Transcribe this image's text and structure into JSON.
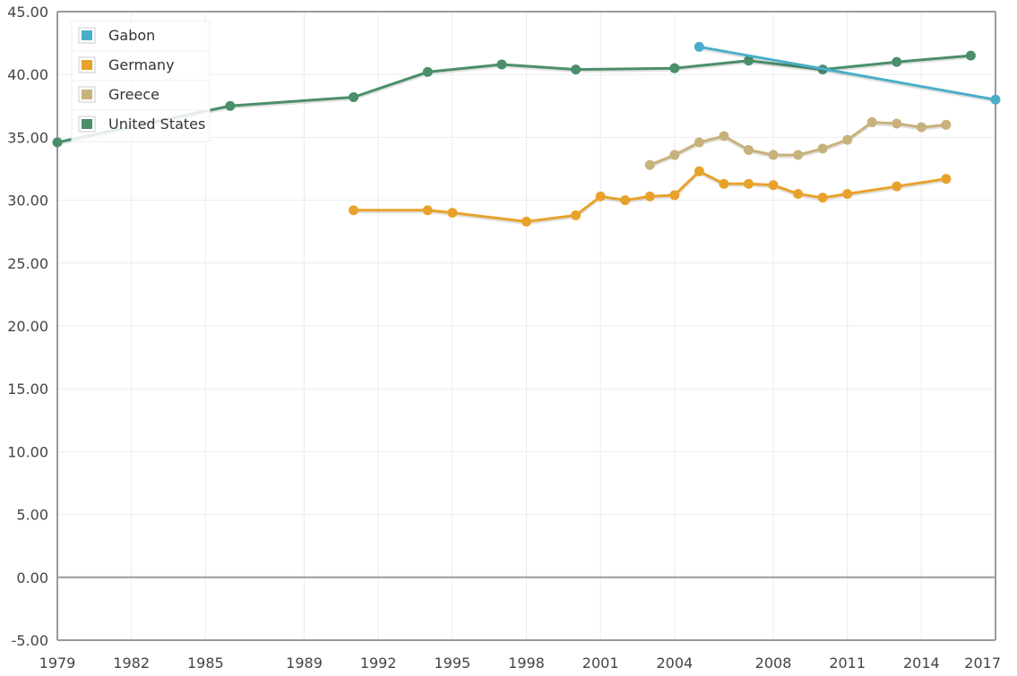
{
  "chart_data": {
    "type": "line",
    "title": "",
    "xlabel": "",
    "ylabel": "",
    "xlim": [
      1979,
      2017
    ],
    "ylim": [
      -5,
      45
    ],
    "x_ticks": [
      "1979",
      "1982",
      "1985",
      "1989",
      "1992",
      "1995",
      "1998",
      "2001",
      "2004",
      "2008",
      "2011",
      "2014",
      "2017"
    ],
    "y_ticks": [
      "-5.00",
      "0.00",
      "5.00",
      "10.00",
      "15.00",
      "20.00",
      "25.00",
      "30.00",
      "35.00",
      "40.00",
      "45.00"
    ],
    "grid": true,
    "legend_position": "top-left",
    "series": [
      {
        "name": "Gabon",
        "color": "#4aaec8",
        "points": [
          [
            2005.0,
            42.2
          ],
          [
            2017.0,
            38.0
          ]
        ]
      },
      {
        "name": "Germany",
        "color": "#e8a22c",
        "points": [
          [
            1991.0,
            29.2
          ],
          [
            1994.0,
            29.2
          ],
          [
            1995.0,
            29.0
          ],
          [
            1998.0,
            28.3
          ],
          [
            2000.0,
            28.8
          ],
          [
            2001.0,
            30.3
          ],
          [
            2002.0,
            30.0
          ],
          [
            2003.0,
            30.3
          ],
          [
            2004.0,
            30.4
          ],
          [
            2005.0,
            32.3
          ],
          [
            2006.0,
            31.3
          ],
          [
            2007.0,
            31.3
          ],
          [
            2008.0,
            31.2
          ],
          [
            2009.0,
            30.5
          ],
          [
            2010.0,
            30.2
          ],
          [
            2011.0,
            30.5
          ],
          [
            2013.0,
            31.1
          ],
          [
            2015.0,
            31.7
          ]
        ]
      },
      {
        "name": "Greece",
        "color": "#c8b27c",
        "points": [
          [
            2003.0,
            32.8
          ],
          [
            2004.0,
            33.6
          ],
          [
            2005.0,
            34.6
          ],
          [
            2006.0,
            35.1
          ],
          [
            2007.0,
            34.0
          ],
          [
            2008.0,
            33.6
          ],
          [
            2009.0,
            33.6
          ],
          [
            2010.0,
            34.1
          ],
          [
            2011.0,
            34.8
          ],
          [
            2012.0,
            36.2
          ],
          [
            2013.0,
            36.1
          ],
          [
            2014.0,
            35.8
          ],
          [
            2015.0,
            36.0
          ]
        ]
      },
      {
        "name": "United States",
        "color": "#4a8e6a",
        "points": [
          [
            1979.0,
            34.6
          ],
          [
            1986.0,
            37.5
          ],
          [
            1991.0,
            38.2
          ],
          [
            1994.0,
            40.2
          ],
          [
            1997.0,
            40.8
          ],
          [
            2000.0,
            40.4
          ],
          [
            2004.0,
            40.5
          ],
          [
            2007.0,
            41.1
          ],
          [
            2010.0,
            40.4
          ],
          [
            2013.0,
            41.0
          ],
          [
            2016.0,
            41.5
          ]
        ]
      }
    ]
  }
}
